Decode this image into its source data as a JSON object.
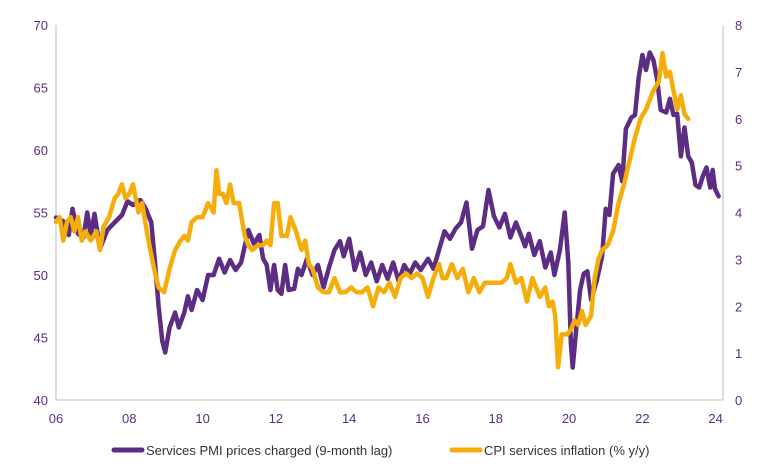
{
  "chart_data": {
    "type": "line",
    "title": "",
    "xlabel": "",
    "ylabel_left": "",
    "ylabel_right": "",
    "x_range": [
      2006,
      2024.2
    ],
    "x_ticks": [
      2006,
      2008,
      2010,
      2012,
      2014,
      2016,
      2018,
      2020,
      2022,
      2024
    ],
    "x_tick_labels": [
      "06",
      "08",
      "10",
      "12",
      "14",
      "16",
      "18",
      "20",
      "22",
      "24"
    ],
    "y_left_range": [
      40,
      70
    ],
    "y_left_ticks": [
      "40",
      "45",
      "50",
      "55",
      "60",
      "65",
      "70"
    ],
    "y_right_range": [
      0,
      8
    ],
    "y_right_ticks": [
      "0",
      "1",
      "2",
      "3",
      "4",
      "5",
      "6",
      "7",
      "8"
    ],
    "grid": false,
    "legend_position": "bottom",
    "series": [
      {
        "name": "Services PMI prices charged (9-month lag)",
        "axis": "left",
        "color": "#5c2d82",
        "points": [
          [
            2006.0,
            54.6
          ],
          [
            2006.2,
            54.3
          ],
          [
            2006.35,
            53.2
          ],
          [
            2006.45,
            55.3
          ],
          [
            2006.6,
            53.3
          ],
          [
            2006.75,
            53.0
          ],
          [
            2006.85,
            55.0
          ],
          [
            2006.95,
            53.2
          ],
          [
            2007.05,
            54.9
          ],
          [
            2007.2,
            52.1
          ],
          [
            2007.4,
            53.6
          ],
          [
            2007.6,
            54.2
          ],
          [
            2007.8,
            54.8
          ],
          [
            2007.95,
            55.9
          ],
          [
            2008.1,
            55.6
          ],
          [
            2008.3,
            56.0
          ],
          [
            2008.45,
            55.3
          ],
          [
            2008.6,
            54.2
          ],
          [
            2008.7,
            51.0
          ],
          [
            2008.8,
            47.5
          ],
          [
            2008.9,
            44.7
          ],
          [
            2008.98,
            43.8
          ],
          [
            2009.1,
            45.8
          ],
          [
            2009.25,
            47.0
          ],
          [
            2009.35,
            45.8
          ],
          [
            2009.5,
            47.0
          ],
          [
            2009.6,
            48.3
          ],
          [
            2009.7,
            47.2
          ],
          [
            2009.85,
            48.8
          ],
          [
            2010.0,
            48.0
          ],
          [
            2010.15,
            50.0
          ],
          [
            2010.3,
            50.0
          ],
          [
            2010.45,
            51.3
          ],
          [
            2010.6,
            50.2
          ],
          [
            2010.75,
            51.2
          ],
          [
            2010.9,
            50.4
          ],
          [
            2011.05,
            51.0
          ],
          [
            2011.25,
            53.6
          ],
          [
            2011.4,
            52.5
          ],
          [
            2011.55,
            53.2
          ],
          [
            2011.65,
            51.3
          ],
          [
            2011.75,
            50.8
          ],
          [
            2011.85,
            48.8
          ],
          [
            2011.95,
            50.8
          ],
          [
            2012.05,
            48.8
          ],
          [
            2012.15,
            48.5
          ],
          [
            2012.25,
            50.8
          ],
          [
            2012.35,
            48.8
          ],
          [
            2012.5,
            48.9
          ],
          [
            2012.6,
            50.5
          ],
          [
            2012.7,
            50.0
          ],
          [
            2012.85,
            51.3
          ],
          [
            2013.0,
            50.0
          ],
          [
            2013.15,
            50.8
          ],
          [
            2013.3,
            49.0
          ],
          [
            2013.45,
            50.6
          ],
          [
            2013.6,
            52.0
          ],
          [
            2013.75,
            52.7
          ],
          [
            2013.85,
            51.5
          ],
          [
            2014.0,
            52.9
          ],
          [
            2014.15,
            50.4
          ],
          [
            2014.3,
            51.8
          ],
          [
            2014.45,
            50.0
          ],
          [
            2014.6,
            51.0
          ],
          [
            2014.75,
            49.5
          ],
          [
            2014.9,
            50.8
          ],
          [
            2015.05,
            49.7
          ],
          [
            2015.2,
            51.0
          ],
          [
            2015.35,
            49.5
          ],
          [
            2015.5,
            50.8
          ],
          [
            2015.65,
            50.1
          ],
          [
            2015.8,
            51.0
          ],
          [
            2015.95,
            50.4
          ],
          [
            2016.15,
            51.3
          ],
          [
            2016.3,
            50.5
          ],
          [
            2016.45,
            52.0
          ],
          [
            2016.6,
            53.5
          ],
          [
            2016.75,
            52.9
          ],
          [
            2016.9,
            53.7
          ],
          [
            2017.05,
            54.2
          ],
          [
            2017.2,
            55.8
          ],
          [
            2017.35,
            52.1
          ],
          [
            2017.5,
            53.6
          ],
          [
            2017.65,
            53.9
          ],
          [
            2017.8,
            56.8
          ],
          [
            2017.95,
            54.7
          ],
          [
            2018.1,
            53.8
          ],
          [
            2018.25,
            54.9
          ],
          [
            2018.4,
            53.0
          ],
          [
            2018.55,
            54.2
          ],
          [
            2018.7,
            53.1
          ],
          [
            2018.8,
            52.3
          ],
          [
            2018.9,
            53.3
          ],
          [
            2019.05,
            51.6
          ],
          [
            2019.2,
            52.7
          ],
          [
            2019.35,
            50.6
          ],
          [
            2019.5,
            51.8
          ],
          [
            2019.6,
            50.0
          ],
          [
            2019.75,
            52.0
          ],
          [
            2019.88,
            55.0
          ],
          [
            2019.98,
            51.0
          ],
          [
            2020.05,
            44.5
          ],
          [
            2020.1,
            42.6
          ],
          [
            2020.2,
            45.8
          ],
          [
            2020.3,
            48.8
          ],
          [
            2020.4,
            50.1
          ],
          [
            2020.5,
            50.3
          ],
          [
            2020.6,
            48.0
          ],
          [
            2020.75,
            49.5
          ],
          [
            2020.9,
            51.5
          ],
          [
            2021.0,
            55.3
          ],
          [
            2021.1,
            54.8
          ],
          [
            2021.2,
            58.1
          ],
          [
            2021.35,
            58.8
          ],
          [
            2021.45,
            57.5
          ],
          [
            2021.55,
            61.7
          ],
          [
            2021.7,
            62.6
          ],
          [
            2021.8,
            62.8
          ],
          [
            2021.9,
            65.8
          ],
          [
            2022.0,
            67.6
          ],
          [
            2022.1,
            66.4
          ],
          [
            2022.2,
            67.8
          ],
          [
            2022.3,
            67.2
          ],
          [
            2022.4,
            65.7
          ],
          [
            2022.5,
            63.2
          ],
          [
            2022.65,
            63.0
          ],
          [
            2022.75,
            64.1
          ],
          [
            2022.85,
            62.8
          ],
          [
            2022.95,
            62.9
          ],
          [
            2023.05,
            59.5
          ],
          [
            2023.15,
            61.8
          ],
          [
            2023.25,
            59.5
          ],
          [
            2023.35,
            59.0
          ],
          [
            2023.45,
            57.2
          ],
          [
            2023.55,
            57.0
          ],
          [
            2023.65,
            57.9
          ],
          [
            2023.75,
            58.6
          ],
          [
            2023.85,
            57.0
          ],
          [
            2023.92,
            58.4
          ],
          [
            2023.98,
            56.9
          ],
          [
            2024.08,
            56.3
          ]
        ]
      },
      {
        "name": "CPI services inflation (% y/y)",
        "axis": "right",
        "color": "#f5ad0a",
        "points": [
          [
            2006.0,
            3.8
          ],
          [
            2006.1,
            3.9
          ],
          [
            2006.2,
            3.4
          ],
          [
            2006.3,
            3.8
          ],
          [
            2006.4,
            3.9
          ],
          [
            2006.5,
            3.6
          ],
          [
            2006.6,
            3.9
          ],
          [
            2006.7,
            3.4
          ],
          [
            2006.8,
            3.6
          ],
          [
            2006.95,
            3.4
          ],
          [
            2007.1,
            3.6
          ],
          [
            2007.2,
            3.2
          ],
          [
            2007.3,
            3.7
          ],
          [
            2007.45,
            3.9
          ],
          [
            2007.6,
            4.3
          ],
          [
            2007.7,
            4.4
          ],
          [
            2007.8,
            4.6
          ],
          [
            2007.9,
            4.3
          ],
          [
            2008.0,
            4.4
          ],
          [
            2008.1,
            4.6
          ],
          [
            2008.25,
            4.0
          ],
          [
            2008.35,
            4.2
          ],
          [
            2008.5,
            3.5
          ],
          [
            2008.65,
            2.9
          ],
          [
            2008.8,
            2.4
          ],
          [
            2008.95,
            2.3
          ],
          [
            2009.1,
            2.8
          ],
          [
            2009.25,
            3.2
          ],
          [
            2009.4,
            3.4
          ],
          [
            2009.5,
            3.5
          ],
          [
            2009.6,
            3.4
          ],
          [
            2009.7,
            3.8
          ],
          [
            2009.85,
            3.9
          ],
          [
            2010.0,
            3.9
          ],
          [
            2010.15,
            4.2
          ],
          [
            2010.3,
            4.0
          ],
          [
            2010.38,
            4.9
          ],
          [
            2010.45,
            4.4
          ],
          [
            2010.55,
            4.4
          ],
          [
            2010.65,
            4.2
          ],
          [
            2010.75,
            4.6
          ],
          [
            2010.85,
            4.2
          ],
          [
            2011.0,
            4.2
          ],
          [
            2011.15,
            3.5
          ],
          [
            2011.25,
            3.3
          ],
          [
            2011.35,
            3.2
          ],
          [
            2011.5,
            3.3
          ],
          [
            2011.65,
            3.3
          ],
          [
            2011.75,
            3.4
          ],
          [
            2011.85,
            3.3
          ],
          [
            2011.95,
            4.2
          ],
          [
            2012.05,
            4.2
          ],
          [
            2012.15,
            3.5
          ],
          [
            2012.3,
            3.5
          ],
          [
            2012.4,
            3.9
          ],
          [
            2012.55,
            3.6
          ],
          [
            2012.7,
            3.2
          ],
          [
            2012.8,
            3.4
          ],
          [
            2012.9,
            2.9
          ],
          [
            2013.0,
            2.8
          ],
          [
            2013.15,
            2.4
          ],
          [
            2013.3,
            2.3
          ],
          [
            2013.45,
            2.3
          ],
          [
            2013.6,
            2.6
          ],
          [
            2013.75,
            2.3
          ],
          [
            2013.9,
            2.3
          ],
          [
            2014.05,
            2.4
          ],
          [
            2014.2,
            2.3
          ],
          [
            2014.35,
            2.3
          ],
          [
            2014.5,
            2.4
          ],
          [
            2014.65,
            2.0
          ],
          [
            2014.8,
            2.4
          ],
          [
            2014.95,
            2.3
          ],
          [
            2015.1,
            2.5
          ],
          [
            2015.25,
            2.2
          ],
          [
            2015.4,
            2.6
          ],
          [
            2015.55,
            2.7
          ],
          [
            2015.7,
            2.6
          ],
          [
            2015.85,
            2.7
          ],
          [
            2016.0,
            2.6
          ],
          [
            2016.15,
            2.2
          ],
          [
            2016.3,
            2.6
          ],
          [
            2016.45,
            2.9
          ],
          [
            2016.55,
            2.6
          ],
          [
            2016.65,
            2.6
          ],
          [
            2016.8,
            2.9
          ],
          [
            2016.95,
            2.6
          ],
          [
            2017.1,
            2.8
          ],
          [
            2017.25,
            2.3
          ],
          [
            2017.4,
            2.6
          ],
          [
            2017.55,
            2.3
          ],
          [
            2017.7,
            2.5
          ],
          [
            2017.85,
            2.5
          ],
          [
            2018.0,
            2.5
          ],
          [
            2018.15,
            2.5
          ],
          [
            2018.3,
            2.6
          ],
          [
            2018.4,
            2.9
          ],
          [
            2018.55,
            2.5
          ],
          [
            2018.7,
            2.6
          ],
          [
            2018.85,
            2.1
          ],
          [
            2019.0,
            2.6
          ],
          [
            2019.1,
            2.4
          ],
          [
            2019.2,
            2.2
          ],
          [
            2019.35,
            2.4
          ],
          [
            2019.45,
            2.0
          ],
          [
            2019.55,
            2.1
          ],
          [
            2019.62,
            1.8
          ],
          [
            2019.7,
            0.7
          ],
          [
            2019.8,
            1.4
          ],
          [
            2019.95,
            1.4
          ],
          [
            2020.05,
            1.5
          ],
          [
            2020.15,
            1.7
          ],
          [
            2020.25,
            1.6
          ],
          [
            2020.35,
            1.9
          ],
          [
            2020.45,
            1.6
          ],
          [
            2020.6,
            1.8
          ],
          [
            2020.7,
            2.6
          ],
          [
            2020.8,
            3.0
          ],
          [
            2020.9,
            3.2
          ],
          [
            2021.05,
            3.3
          ],
          [
            2021.2,
            3.6
          ],
          [
            2021.35,
            4.2
          ],
          [
            2021.5,
            4.6
          ],
          [
            2021.65,
            5.1
          ],
          [
            2021.8,
            5.6
          ],
          [
            2021.95,
            6.0
          ],
          [
            2022.1,
            6.2
          ],
          [
            2022.2,
            6.4
          ],
          [
            2022.3,
            6.6
          ],
          [
            2022.45,
            6.8
          ],
          [
            2022.55,
            7.4
          ],
          [
            2022.65,
            6.9
          ],
          [
            2022.75,
            7.0
          ],
          [
            2022.85,
            6.6
          ],
          [
            2022.95,
            6.2
          ],
          [
            2023.05,
            6.5
          ],
          [
            2023.15,
            6.1
          ],
          [
            2023.25,
            6.0
          ]
        ]
      }
    ]
  },
  "legend": {
    "series_1_label": "Services PMI prices charged (9-month lag)",
    "series_2_label": "CPI services inflation (% y/y)"
  }
}
